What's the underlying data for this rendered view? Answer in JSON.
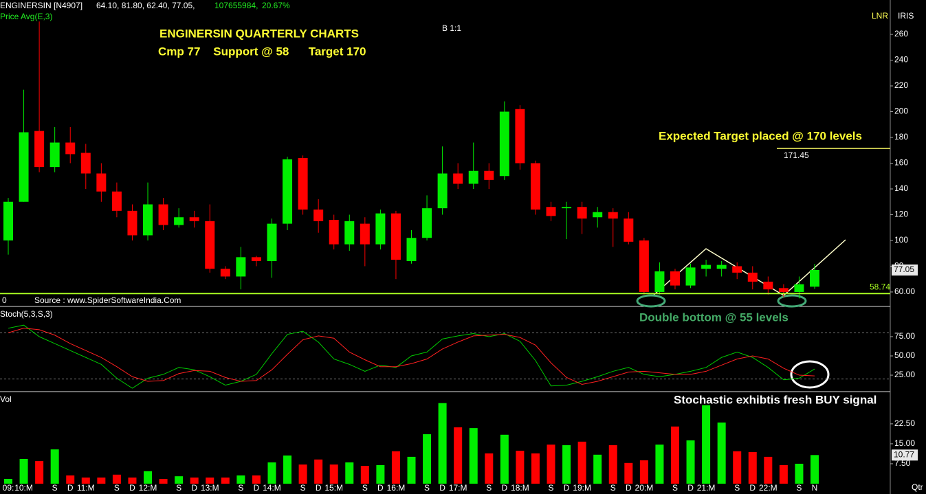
{
  "header": {
    "name": "ENGINERSIN [N4907]",
    "ohlc": "64.10, 81.80, 62.40, 77.05,",
    "volume": "107655984,",
    "change": "20.67%",
    "indicator": "Price Avg(E,3)",
    "scale": "B 1:1",
    "lnr": "LNR",
    "iris": "IRIS",
    "period": "Qtr"
  },
  "annotations": {
    "title": "ENGINERSIN QUARTERLY CHARTS",
    "subtitle": "Cmp 77    Support @ 58      Target 170",
    "target": "Expected Target placed @ 170 levels",
    "zero": "0",
    "source": "Source : www.SpiderSoftwareIndia.Com",
    "double_bottom": "Double bottom @ 55 levels",
    "stoch_note": "Stochastic exhibtis fresh BUY signal"
  },
  "chart_data": [
    {
      "type": "candlestick",
      "up_color": "#00ee00",
      "down_color": "#ff0000",
      "open": [
        100,
        130,
        185,
        157,
        176,
        168,
        152,
        138,
        123,
        104,
        128,
        112,
        118,
        115,
        78,
        72,
        87,
        84,
        113,
        164,
        124,
        116,
        97,
        113,
        97,
        121,
        84,
        102,
        125,
        152,
        144,
        154,
        150,
        202,
        160,
        126,
        125,
        126,
        118,
        122,
        117,
        100,
        60,
        76,
        65,
        78,
        78,
        80,
        75,
        68,
        63,
        60,
        64.1
      ],
      "high": [
        133,
        217,
        270,
        188,
        188,
        175,
        160,
        145,
        128,
        145,
        133,
        125,
        123,
        128,
        80,
        95,
        88,
        117,
        165,
        166,
        132,
        120,
        120,
        118,
        124,
        123,
        108,
        135,
        173,
        160,
        176,
        160,
        208,
        205,
        162,
        130,
        130,
        130,
        126,
        125,
        122,
        102,
        83,
        78,
        82,
        85,
        84,
        83,
        80,
        72,
        66,
        72,
        81.8
      ],
      "low": [
        89,
        130,
        153,
        153,
        160,
        140,
        130,
        118,
        100,
        100,
        108,
        110,
        110,
        75,
        70,
        62,
        80,
        71,
        108,
        120,
        106,
        93,
        92,
        80,
        93,
        70,
        82,
        100,
        120,
        140,
        140,
        140,
        147,
        155,
        120,
        115,
        101,
        105,
        110,
        95,
        97,
        58,
        58,
        62,
        63,
        72,
        72,
        70,
        62,
        58,
        56,
        55,
        62.4
      ],
      "close": [
        130,
        184,
        157,
        176,
        167,
        152,
        138,
        123,
        104,
        128,
        112,
        118,
        115,
        78,
        72,
        87,
        84,
        113,
        163,
        124,
        115,
        97,
        115,
        97,
        121,
        85,
        102,
        125,
        152,
        144,
        154,
        147,
        200,
        160,
        124,
        119,
        126,
        117,
        122,
        117,
        99,
        60,
        76,
        65,
        79,
        81,
        81,
        75,
        68,
        62,
        60,
        66,
        77.05
      ],
      "ylim": [
        49.3,
        278.7
      ],
      "yticks": [
        {
          "value": 60,
          "label": "60.00"
        },
        80,
        100,
        120,
        140,
        160,
        180,
        200,
        220,
        240,
        260
      ],
      "levels": [
        {
          "value": 171.45,
          "label": "171.45",
          "color": "#ffff66"
        },
        {
          "value": 58.74,
          "label": "58.74",
          "color": "#aaff22"
        }
      ],
      "last_label": {
        "value": 77.05,
        "label": "77.05"
      }
    },
    {
      "type": "line",
      "title": "Stoch(5,3,S,3)",
      "series": [
        {
          "color": "#00cc00",
          "values": [
            86,
            90,
            75,
            66,
            57,
            48,
            39,
            21,
            8,
            21,
            26,
            35,
            32,
            23,
            12,
            17,
            26,
            53,
            78,
            82,
            68,
            46,
            39,
            30,
            38,
            35,
            50,
            55,
            72,
            76,
            79,
            75,
            79,
            69,
            44,
            11,
            12,
            17,
            23,
            30,
            35,
            26,
            23,
            26,
            30,
            35,
            48,
            55,
            48,
            35,
            19,
            21,
            33
          ]
        },
        {
          "color": "#ff2020",
          "values": [
            80,
            86,
            84,
            77,
            66,
            57,
            48,
            36,
            23,
            17,
            18,
            27,
            31,
            30,
            22,
            17,
            18,
            32,
            52,
            71,
            76,
            73,
            55,
            45,
            36,
            36,
            40,
            46,
            59,
            68,
            76,
            77,
            78,
            74,
            64,
            41,
            22,
            13,
            17,
            23,
            29,
            30,
            28,
            26,
            26,
            30,
            38,
            46,
            50,
            46,
            34,
            25,
            24
          ]
        }
      ],
      "ylim": [
        3.6,
        112.5
      ],
      "yticks": [
        {
          "value": 25,
          "label": "25.00"
        },
        {
          "value": 50,
          "label": "50.00"
        },
        {
          "value": 75,
          "label": "75.00"
        }
      ],
      "levels": [
        80,
        20
      ]
    },
    {
      "type": "bar",
      "title": "Vol",
      "categories": [
        "09:",
        "10:M",
        null,
        "S",
        "D",
        "11:M",
        null,
        "S",
        "D",
        "12:M",
        null,
        "S",
        "D",
        "13:M",
        null,
        "S",
        "D",
        "14:M",
        null,
        "S",
        "D",
        "15:M",
        null,
        "S",
        "D",
        "16:M",
        null,
        "S",
        "D",
        "17:M",
        null,
        "S",
        "D",
        "18:M",
        null,
        "S",
        "D",
        "19:M",
        null,
        "S",
        "D",
        "20:M",
        null,
        "S",
        "D",
        "21:M",
        null,
        "S",
        "D",
        "22:M",
        null,
        "S",
        "N"
      ],
      "values": [
        1.8,
        9.3,
        8.5,
        12.9,
        3.1,
        2.3,
        2.3,
        3.4,
        2.3,
        4.7,
        1.8,
        2.8,
        2.3,
        2.3,
        2.3,
        3.1,
        3.1,
        8.0,
        10.6,
        7.2,
        9.1,
        7.2,
        8.0,
        6.7,
        7.0,
        12.2,
        10.1,
        18.6,
        30.3,
        21.2,
        20.9,
        11.4,
        18.4,
        12.4,
        11.4,
        14.7,
        14.5,
        15.8,
        10.9,
        14.5,
        7.8,
        8.8,
        14.7,
        21.5,
        16.3,
        29.5,
        23.0,
        12.2,
        11.9,
        10.1,
        7.0,
        7.5,
        10.77
      ],
      "ylim": [
        0,
        34.1
      ],
      "yticks": [
        {
          "value": 7.5,
          "label": "7.50"
        },
        {
          "value": 15,
          "label": "15.00"
        },
        {
          "value": 22.5,
          "label": "22.50"
        }
      ],
      "last_label": {
        "value": 10.77,
        "label": "10.77"
      }
    }
  ]
}
